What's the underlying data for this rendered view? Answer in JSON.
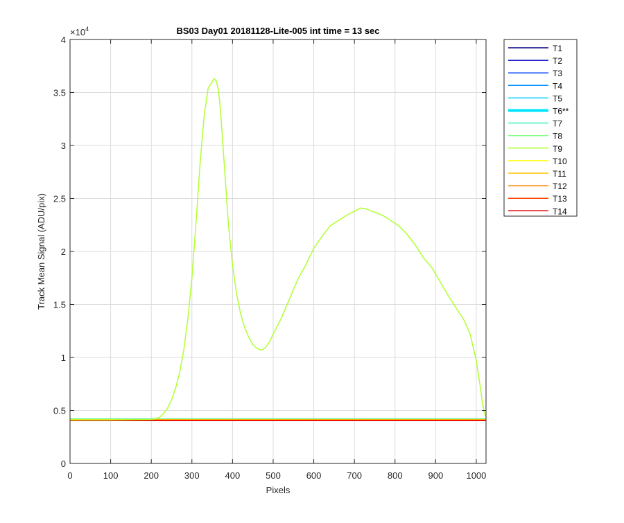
{
  "chart_data": {
    "type": "line",
    "title": "BS03 Day01 20181128-Lite-005 int time = 13 sec",
    "xlabel": "Pixels",
    "ylabel": "Track Mean Signal (ADU/pix)",
    "y_exponent_label": "×10",
    "y_exponent_power": "4",
    "xlim": [
      0,
      1024
    ],
    "ylim": [
      0,
      40000
    ],
    "xticks": [
      0,
      100,
      200,
      300,
      400,
      500,
      600,
      700,
      800,
      900,
      1000
    ],
    "yticks": [
      0,
      5000,
      10000,
      15000,
      20000,
      25000,
      30000,
      35000,
      40000
    ],
    "xtick_labels": [
      "0",
      "100",
      "200",
      "300",
      "400",
      "500",
      "600",
      "700",
      "800",
      "900",
      "1000"
    ],
    "ytick_labels": [
      "0",
      "0.5",
      "1",
      "1.5",
      "2",
      "2.5",
      "3",
      "3.5",
      "4"
    ],
    "grid": true,
    "legend_position": "outside-top-right",
    "series": [
      {
        "name": "T1",
        "color": "#000080",
        "width": 1.5,
        "x": [
          0,
          1024
        ],
        "y": [
          4100,
          4100
        ]
      },
      {
        "name": "T2",
        "color": "#0000c8",
        "width": 1.5,
        "x": [
          0,
          1024
        ],
        "y": [
          4120,
          4120
        ]
      },
      {
        "name": "T3",
        "color": "#0040ff",
        "width": 1.5,
        "x": [
          0,
          1024
        ],
        "y": [
          4150,
          4150
        ]
      },
      {
        "name": "T4",
        "color": "#0090ff",
        "width": 1.5,
        "x": [
          0,
          1024
        ],
        "y": [
          4180,
          4180
        ]
      },
      {
        "name": "T5",
        "color": "#00d0ff",
        "width": 1.5,
        "x": [
          0,
          1024
        ],
        "y": [
          4200,
          4200
        ]
      },
      {
        "name": "T6**",
        "color": "#00e5ff",
        "width": 4,
        "x": [
          0,
          1024
        ],
        "y": [
          4200,
          4200
        ]
      },
      {
        "name": "T7",
        "color": "#40f0c0",
        "width": 1.5,
        "x": [
          0,
          1024
        ],
        "y": [
          4180,
          4180
        ]
      },
      {
        "name": "T8",
        "color": "#80ff80",
        "width": 1.5,
        "x": [
          0,
          1024
        ],
        "y": [
          4170,
          4170
        ]
      },
      {
        "name": "T9",
        "color": "#b0ff30",
        "width": 1.5,
        "x": [
          0,
          100,
          200,
          210,
          220,
          230,
          240,
          250,
          260,
          270,
          280,
          290,
          300,
          310,
          320,
          330,
          340,
          350,
          355,
          360,
          365,
          370,
          380,
          390,
          400,
          410,
          420,
          430,
          440,
          450,
          460,
          470,
          475,
          480,
          490,
          500,
          520,
          540,
          560,
          580,
          600,
          620,
          640,
          660,
          680,
          700,
          715,
          730,
          750,
          770,
          790,
          810,
          830,
          850,
          870,
          890,
          910,
          930,
          950,
          970,
          985,
          1000,
          1010,
          1015,
          1020,
          1024
        ],
        "y": [
          4100,
          4100,
          4150,
          4200,
          4350,
          4700,
          5200,
          6000,
          7100,
          8600,
          10700,
          13600,
          17500,
          22600,
          28200,
          32800,
          35400,
          36000,
          36300,
          36100,
          35300,
          33500,
          28000,
          22500,
          18700,
          16000,
          14100,
          12800,
          11900,
          11200,
          10850,
          10700,
          10750,
          10900,
          11400,
          12200,
          13700,
          15500,
          17300,
          18700,
          20300,
          21400,
          22400,
          22900,
          23400,
          23800,
          24100,
          24000,
          23700,
          23400,
          22900,
          22400,
          21600,
          20600,
          19400,
          18500,
          17200,
          15900,
          14700,
          13500,
          12200,
          9700,
          7200,
          5800,
          4700,
          4400
        ]
      },
      {
        "name": "T10",
        "color": "#ffff00",
        "width": 1.5,
        "x": [
          0,
          1024
        ],
        "y": [
          4150,
          4150
        ]
      },
      {
        "name": "T11",
        "color": "#ffc000",
        "width": 1.5,
        "x": [
          0,
          1024
        ],
        "y": [
          4120,
          4120
        ]
      },
      {
        "name": "T12",
        "color": "#ff8000",
        "width": 1.5,
        "x": [
          0,
          1024
        ],
        "y": [
          4090,
          4090
        ]
      },
      {
        "name": "T13",
        "color": "#ff4000",
        "width": 1.5,
        "x": [
          0,
          1024
        ],
        "y": [
          4060,
          4060
        ]
      },
      {
        "name": "T14",
        "color": "#e00000",
        "width": 1.5,
        "x": [
          0,
          1024
        ],
        "y": [
          4030,
          4030
        ]
      }
    ]
  }
}
